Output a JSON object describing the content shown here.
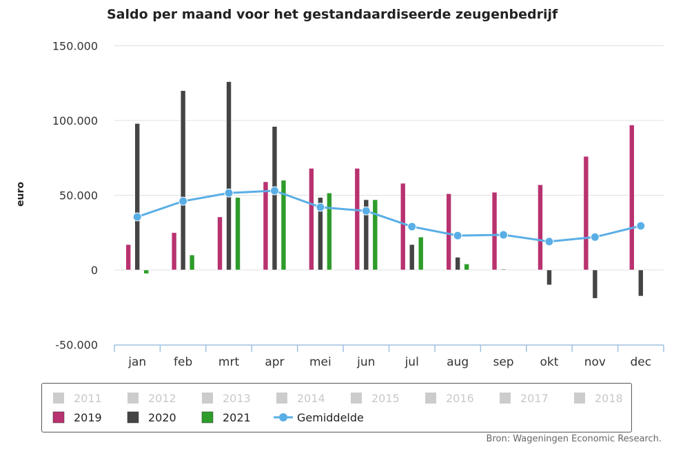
{
  "title": "Saldo per maand voor het gestandaardiseerde zeugenbedrijf",
  "credit": "Bron: Wageningen Economic Research.",
  "chart_data": {
    "type": "bar",
    "title": "Saldo per maand voor het gestandaardiseerde zeugenbedrijf",
    "ylabel": "euro",
    "xlabel": "",
    "ylim": [
      -50000,
      150000
    ],
    "yticks": [
      -50000,
      0,
      50000,
      100000,
      150000
    ],
    "ytick_labels": [
      "-50.000",
      "0",
      "50.000",
      "100.000",
      "150.000"
    ],
    "categories": [
      "jan",
      "feb",
      "mrt",
      "apr",
      "mei",
      "jun",
      "jul",
      "aug",
      "sep",
      "okt",
      "nov",
      "dec"
    ],
    "grid": true,
    "legend_position": "bottom",
    "series": [
      {
        "name": "2019",
        "type": "bar",
        "color": "#b83270",
        "values": [
          17000,
          25000,
          35500,
          59000,
          68000,
          68000,
          58000,
          51000,
          52000,
          57000,
          76000,
          97000
        ]
      },
      {
        "name": "2020",
        "type": "bar",
        "color": "#444444",
        "values": [
          98000,
          120000,
          126000,
          96000,
          48500,
          47000,
          17000,
          8500,
          500,
          -10000,
          -19000,
          -17500
        ]
      },
      {
        "name": "2021",
        "type": "bar",
        "color": "#2e9c2a",
        "values": [
          -2500,
          10000,
          48500,
          60000,
          51500,
          47000,
          22000,
          4000,
          null,
          null,
          null,
          null
        ]
      },
      {
        "name": "Gemiddelde",
        "type": "line",
        "color": "#5aaee6",
        "values": [
          35500,
          46000,
          51500,
          53000,
          42000,
          39500,
          29000,
          23000,
          23500,
          19000,
          22000,
          29500
        ]
      }
    ],
    "hidden_series": [
      "2011",
      "2012",
      "2013",
      "2014",
      "2015",
      "2016",
      "2017",
      "2018"
    ],
    "hidden_color": "#cccccc"
  }
}
